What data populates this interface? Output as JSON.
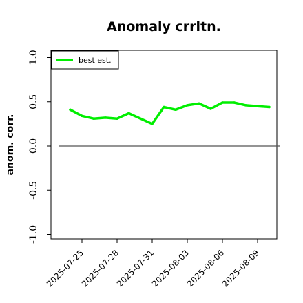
{
  "chart_data": {
    "type": "line",
    "title": "Anomaly crrltn.",
    "xlabel": "",
    "ylabel": "anom. corr.",
    "x": [
      "2025-07-24",
      "2025-07-25",
      "2025-07-26",
      "2025-07-27",
      "2025-07-28",
      "2025-07-29",
      "2025-07-30",
      "2025-07-31",
      "2025-08-01",
      "2025-08-02",
      "2025-08-03",
      "2025-08-04",
      "2025-08-05",
      "2025-08-06",
      "2025-08-07",
      "2025-08-08",
      "2025-08-09",
      "2025-08-10"
    ],
    "x_ticks": [
      "2025-07-25",
      "2025-07-28",
      "2025-07-31",
      "2025-08-03",
      "2025-08-06",
      "2025-08-09"
    ],
    "ylim": [
      -1.0,
      1.0
    ],
    "y_ticks": [
      "-1.0",
      "-0.5",
      "0.0",
      "0.5",
      "1.0"
    ],
    "series": [
      {
        "name": "best est.",
        "color": "#00ee00",
        "values": [
          0.41,
          0.34,
          0.31,
          0.32,
          0.31,
          0.37,
          0.31,
          0.25,
          0.44,
          0.41,
          0.46,
          0.48,
          0.42,
          0.49,
          0.49,
          0.46,
          0.45,
          0.44
        ]
      }
    ],
    "reference_line": {
      "y": 0.0,
      "color": "#555555"
    },
    "legend": "top-left",
    "grid": false
  }
}
